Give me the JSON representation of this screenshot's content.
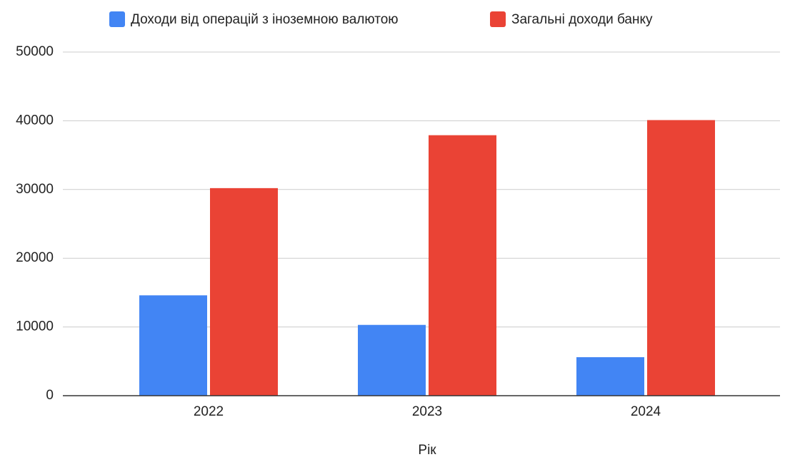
{
  "chart_data": {
    "type": "bar",
    "x_label": "Рік",
    "categories": [
      "2022",
      "2023",
      "2024"
    ],
    "series": [
      {
        "name": "Доходи від операцій з іноземною валютою",
        "color": "#4285f4",
        "values": [
          14600,
          10300,
          5600
        ]
      },
      {
        "name": "Загальні доходи банку",
        "color": "#ea4335",
        "values": [
          30200,
          37900,
          40100
        ]
      }
    ],
    "ylim": [
      0,
      50000
    ],
    "yticks": [
      0,
      10000,
      20000,
      30000,
      40000,
      50000
    ],
    "grid": true,
    "legend": "top"
  }
}
